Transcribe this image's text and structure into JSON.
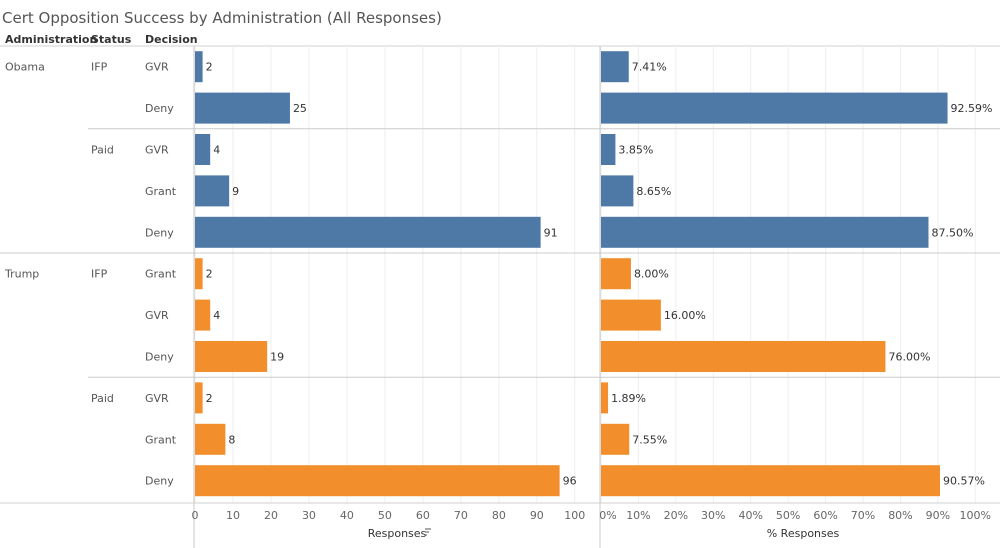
{
  "chart_data": {
    "type": "bar",
    "title": "Cert Opposition Success by Administration (All Responses)",
    "row_headers": [
      "Administration",
      "Status",
      "Decision"
    ],
    "groups": [
      {
        "administration": "Obama",
        "status": "IFP",
        "decision": "GVR",
        "responses": 2,
        "responses_label": "2",
        "pct": 7.41,
        "pct_label": "7.41%"
      },
      {
        "administration": "Obama",
        "status": "IFP",
        "decision": "Deny",
        "responses": 25,
        "responses_label": "25",
        "pct": 92.59,
        "pct_label": "92.59%"
      },
      {
        "administration": "Obama",
        "status": "Paid",
        "decision": "GVR",
        "responses": 4,
        "responses_label": "4",
        "pct": 3.85,
        "pct_label": "3.85%"
      },
      {
        "administration": "Obama",
        "status": "Paid",
        "decision": "Grant",
        "responses": 9,
        "responses_label": "9",
        "pct": 8.65,
        "pct_label": "8.65%"
      },
      {
        "administration": "Obama",
        "status": "Paid",
        "decision": "Deny",
        "responses": 91,
        "responses_label": "91",
        "pct": 87.5,
        "pct_label": "87.50%"
      },
      {
        "administration": "Trump",
        "status": "IFP",
        "decision": "Grant",
        "responses": 2,
        "responses_label": "2",
        "pct": 8.0,
        "pct_label": "8.00%"
      },
      {
        "administration": "Trump",
        "status": "IFP",
        "decision": "GVR",
        "responses": 4,
        "responses_label": "4",
        "pct": 16.0,
        "pct_label": "16.00%"
      },
      {
        "administration": "Trump",
        "status": "IFP",
        "decision": "Deny",
        "responses": 19,
        "responses_label": "19",
        "pct": 76.0,
        "pct_label": "76.00%"
      },
      {
        "administration": "Trump",
        "status": "Paid",
        "decision": "GVR",
        "responses": 2,
        "responses_label": "2",
        "pct": 1.89,
        "pct_label": "1.89%"
      },
      {
        "administration": "Trump",
        "status": "Paid",
        "decision": "Grant",
        "responses": 8,
        "responses_label": "8",
        "pct": 7.55,
        "pct_label": "7.55%"
      },
      {
        "administration": "Trump",
        "status": "Paid",
        "decision": "Deny",
        "responses": 96,
        "responses_label": "96",
        "pct": 90.57,
        "pct_label": "90.57%"
      }
    ],
    "left_axis": {
      "xlabel": "Responses",
      "sort_icon": "sort-descending-icon",
      "xlim": [
        0,
        104
      ],
      "ticks": [
        0,
        10,
        20,
        30,
        40,
        50,
        60,
        70,
        80,
        90,
        100
      ],
      "tick_labels": [
        "0",
        "10",
        "20",
        "30",
        "40",
        "50",
        "60",
        "70",
        "80",
        "90",
        "100"
      ]
    },
    "right_axis": {
      "xlabel": "% Responses",
      "xlim": [
        0,
        105
      ],
      "ticks": [
        0,
        10,
        20,
        30,
        40,
        50,
        60,
        70,
        80,
        90,
        100
      ],
      "tick_labels": [
        "0%",
        "10%",
        "20%",
        "30%",
        "40%",
        "50%",
        "60%",
        "70%",
        "80%",
        "90%",
        "100%"
      ]
    },
    "colors": {
      "Obama": "#4e79a7",
      "Trump": "#f28e2b"
    },
    "grid": true,
    "legend": "none"
  }
}
